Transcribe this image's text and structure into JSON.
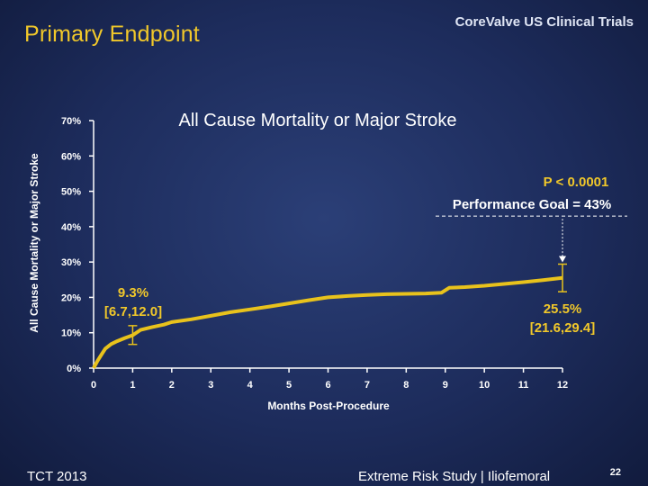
{
  "slide": {
    "title": "Primary Endpoint",
    "brand": "CoreValve US Clinical Trials",
    "footer_left": "TCT 2013",
    "footer_center": "Extreme Risk Study | Iliofemoral",
    "page_number": "22"
  },
  "chart_data": {
    "type": "line",
    "title": "All Cause Mortality or Major Stroke",
    "xlabel": "Months Post-Procedure",
    "ylabel": "All Cause Mortality or Major Stroke",
    "xlim": [
      0,
      12
    ],
    "ylim": [
      0,
      70
    ],
    "x_ticks": [
      "0",
      "1",
      "2",
      "3",
      "4",
      "5",
      "6",
      "7",
      "8",
      "9",
      "10",
      "11",
      "12"
    ],
    "y_ticks": [
      "0%",
      "10%",
      "20%",
      "30%",
      "40%",
      "50%",
      "60%",
      "70%"
    ],
    "series": [
      {
        "color": "#e8c21c",
        "x": [
          0,
          0.1,
          0.2,
          0.3,
          0.45,
          0.6,
          0.8,
          1.0,
          1.2,
          1.5,
          1.8,
          2.0,
          2.5,
          3.0,
          3.5,
          4.0,
          4.5,
          5.0,
          5.5,
          6.0,
          6.5,
          7.0,
          7.5,
          8.0,
          8.5,
          8.9,
          9.1,
          9.5,
          10.0,
          10.5,
          11.0,
          11.5,
          12.0
        ],
        "y": [
          0,
          2.0,
          3.8,
          5.5,
          6.8,
          7.6,
          8.5,
          9.3,
          10.8,
          11.6,
          12.3,
          13.0,
          13.8,
          14.8,
          15.8,
          16.6,
          17.4,
          18.3,
          19.2,
          20.0,
          20.4,
          20.7,
          20.9,
          21.0,
          21.1,
          21.3,
          22.7,
          22.9,
          23.3,
          23.8,
          24.3,
          24.9,
          25.5
        ]
      }
    ],
    "error_bars": [
      {
        "x": 1,
        "y": 9.3,
        "low": 6.7,
        "high": 12.0
      },
      {
        "x": 12,
        "y": 25.5,
        "low": 21.6,
        "high": 29.4
      }
    ],
    "annotations": [
      {
        "label": "9.3%",
        "ci": "[6.7,12.0]",
        "x": 1,
        "y": 9.3
      },
      {
        "label": "25.5%",
        "ci": "[21.6,29.4]",
        "x": 12,
        "y": 25.5
      }
    ],
    "performance_goal": {
      "value": 43,
      "label": "Performance Goal = 43%",
      "p_value": "P < 0.0001"
    },
    "grid": false,
    "colors": {
      "line": "#e8c21c",
      "annotation": "#f1c82a",
      "axis": "#ffffff"
    }
  }
}
